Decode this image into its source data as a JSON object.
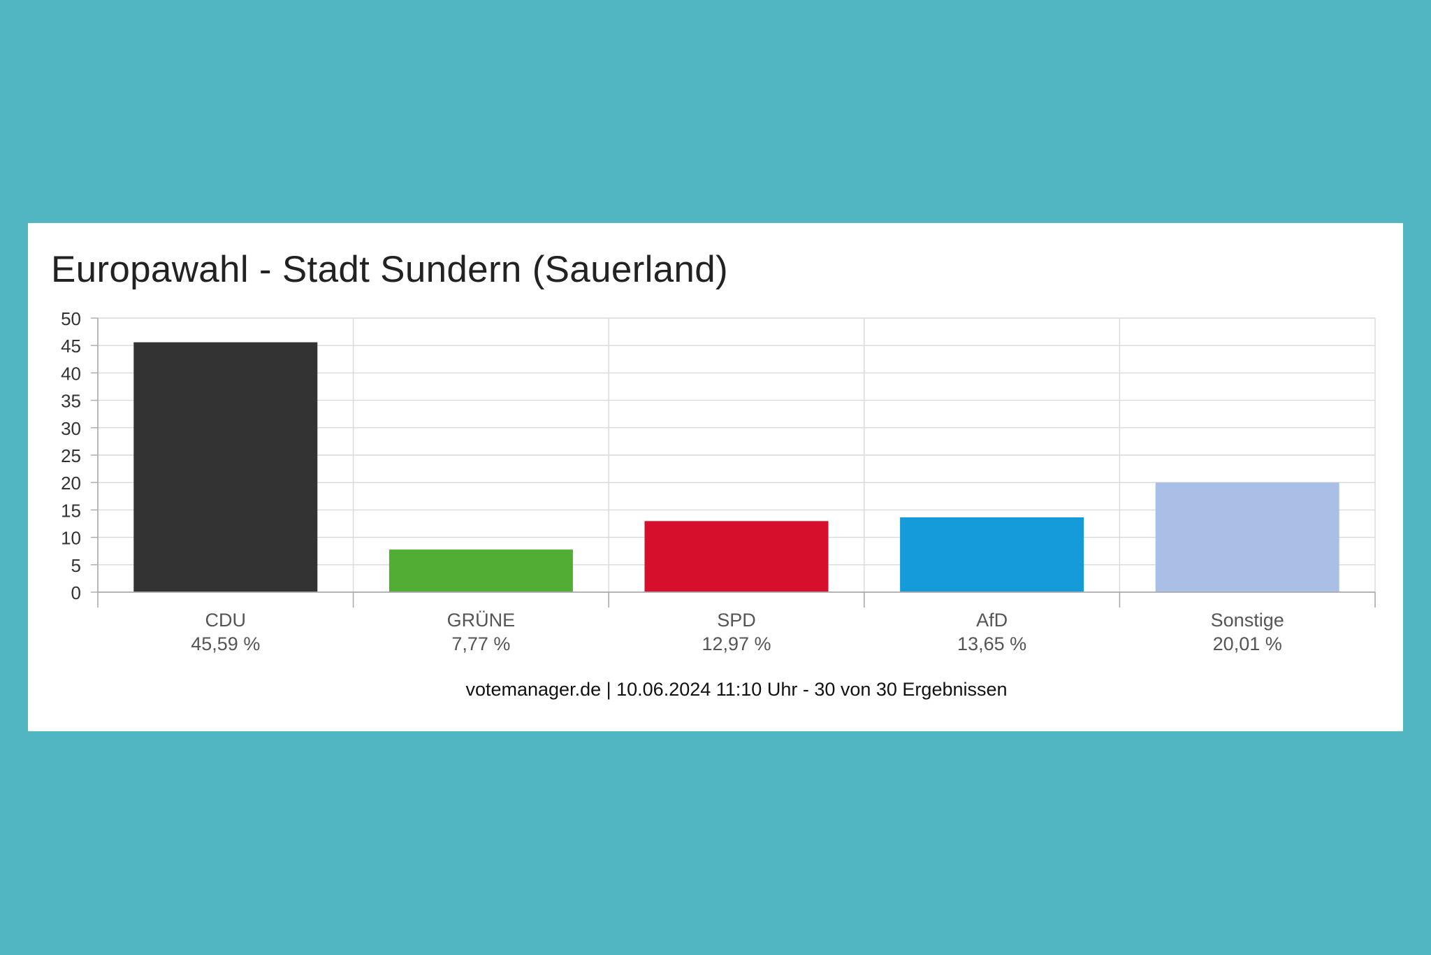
{
  "colors": {
    "background": "#51b5c2",
    "card": "#ffffff",
    "grid": "#d9d9d9",
    "axis": "#aaaaaa"
  },
  "chart_data": {
    "type": "bar",
    "title": "Europawahl - Stadt Sundern (Sauerland)",
    "categories": [
      "CDU",
      "GRÜNE",
      "SPD",
      "AfD",
      "Sonstige"
    ],
    "values": [
      45.59,
      7.77,
      12.97,
      13.65,
      20.01
    ],
    "value_labels": [
      "45,59 %",
      "7,77 %",
      "12,97 %",
      "13,65 %",
      "20,01 %"
    ],
    "colors": [
      "#333333",
      "#52ad34",
      "#d60f2c",
      "#169bda",
      "#aabfe5"
    ],
    "ylim": [
      0,
      50
    ],
    "yticks": [
      0,
      5,
      10,
      15,
      20,
      25,
      30,
      35,
      40,
      45,
      50
    ],
    "grid": true,
    "legend": "none",
    "xlabel": "",
    "ylabel": ""
  },
  "footer": "votemanager.de | 10.06.2024 11:10 Uhr - 30 von 30 Ergebnissen"
}
